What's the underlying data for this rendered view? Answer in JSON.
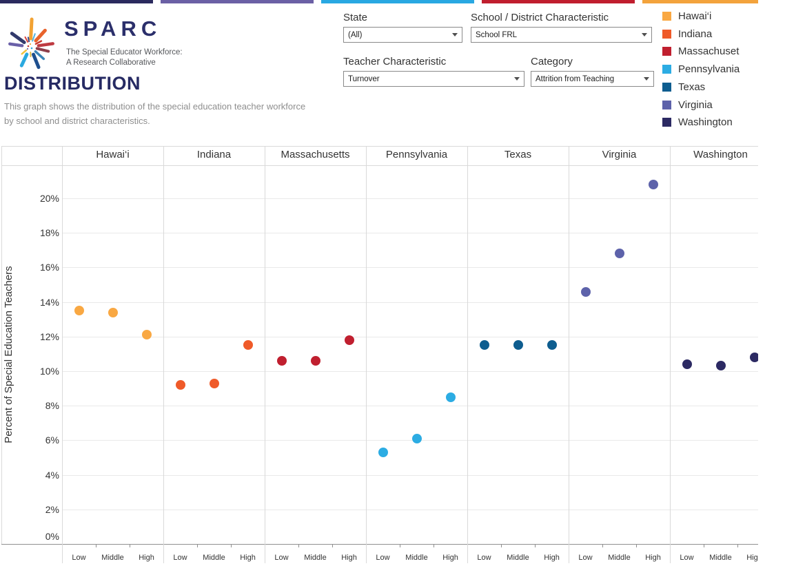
{
  "header": {
    "brand": {
      "wordmark": "SPARC",
      "tagline_line1": "The Special Educator Workforce:",
      "tagline_line2": "A Research Collaborative"
    },
    "title": "DISTRIBUTION",
    "description_line1": "This graph shows the distribution of the special education teacher workforce",
    "description_line2": "by school and district characteristics."
  },
  "top_bars": [
    "#2B2A5E",
    "#6B60A5",
    "#29A8E2",
    "#C01E2E",
    "#F3A33C"
  ],
  "filters": [
    {
      "label": "State",
      "value": "(All)"
    },
    {
      "label": "School / District Characteristic",
      "value": "School FRL"
    },
    {
      "label": "Teacher Characteristic",
      "value": "Turnover"
    },
    {
      "label": "Category",
      "value": "Attrition from Teaching"
    }
  ],
  "legend": {
    "items": [
      {
        "label": "Hawai‘i",
        "color": "#F9A843"
      },
      {
        "label": "Indiana",
        "color": "#EF5A29"
      },
      {
        "label": "Massachuset",
        "color": "#C01F2F"
      },
      {
        "label": "Pennsylvania",
        "color": "#2CACE3"
      },
      {
        "label": "Texas",
        "color": "#0E5D8F"
      },
      {
        "label": "Virginia",
        "color": "#5D62AA"
      },
      {
        "label": "Washington",
        "color": "#2C2A63"
      }
    ]
  },
  "chart_data": {
    "type": "scatter",
    "y_axis": {
      "title": "Percent of Special Education Teachers",
      "ticks_percent": [
        0,
        2,
        4,
        6,
        8,
        10,
        12,
        14,
        16,
        18,
        20
      ],
      "range_percent": [
        0,
        22
      ],
      "grid": true
    },
    "x_categories": [
      "Low",
      "Middle",
      "High"
    ],
    "panels": [
      {
        "state": "Hawai‘i",
        "color": "#F9A843",
        "values": [
          13.5,
          13.4,
          12.1
        ]
      },
      {
        "state": "Indiana",
        "color": "#EF5A29",
        "values": [
          9.2,
          9.3,
          11.5
        ]
      },
      {
        "state": "Massachusetts",
        "color": "#C01F2F",
        "values": [
          10.6,
          10.6,
          11.8
        ]
      },
      {
        "state": "Pennsylvania",
        "color": "#2CACE3",
        "values": [
          5.3,
          6.1,
          8.5
        ]
      },
      {
        "state": "Texas",
        "color": "#0E5D8F",
        "values": [
          11.5,
          11.5,
          11.5
        ]
      },
      {
        "state": "Virginia",
        "color": "#5D62AA",
        "values": [
          14.6,
          16.8,
          20.8
        ]
      },
      {
        "state": "Washington",
        "color": "#2C2A63",
        "values": [
          10.4,
          10.3,
          10.8
        ]
      }
    ]
  }
}
